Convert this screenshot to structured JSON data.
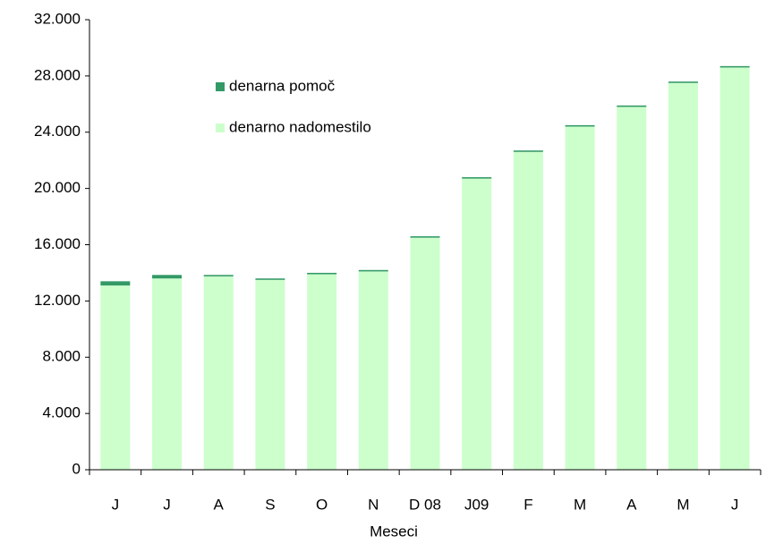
{
  "chart_data": {
    "type": "stacked-bar",
    "x_label": "Meseci",
    "categories": [
      "J",
      "J",
      "A",
      "S",
      "O",
      "N",
      "D 08",
      "J09",
      "F",
      "M",
      "A",
      "M",
      "J"
    ],
    "series": [
      {
        "name": "denarno nadomestilo",
        "color": "#ccffcc",
        "values": [
          13100,
          13600,
          13750,
          13500,
          13900,
          14100,
          16500,
          20700,
          22600,
          24400,
          25800,
          27500,
          28600
        ]
      },
      {
        "name": "denarna pomoč",
        "color": "#339966",
        "values": [
          300,
          250,
          100,
          100,
          100,
          100,
          100,
          100,
          100,
          100,
          100,
          100,
          100
        ]
      }
    ],
    "ylim": [
      0,
      32000
    ],
    "yticks": [
      0,
      {
        "value": 4000,
        "label": "4.000"
      },
      {
        "value": 8000,
        "label": "8.000"
      },
      {
        "value": 12000,
        "label": "12.000"
      },
      {
        "value": 16000,
        "label": "16.000"
      },
      {
        "value": 20000,
        "label": "20.000"
      },
      {
        "value": 24000,
        "label": "24.000"
      },
      {
        "value": 28000,
        "label": "28.000"
      },
      {
        "value": 32000,
        "label": "32.000"
      }
    ],
    "grid": false
  }
}
